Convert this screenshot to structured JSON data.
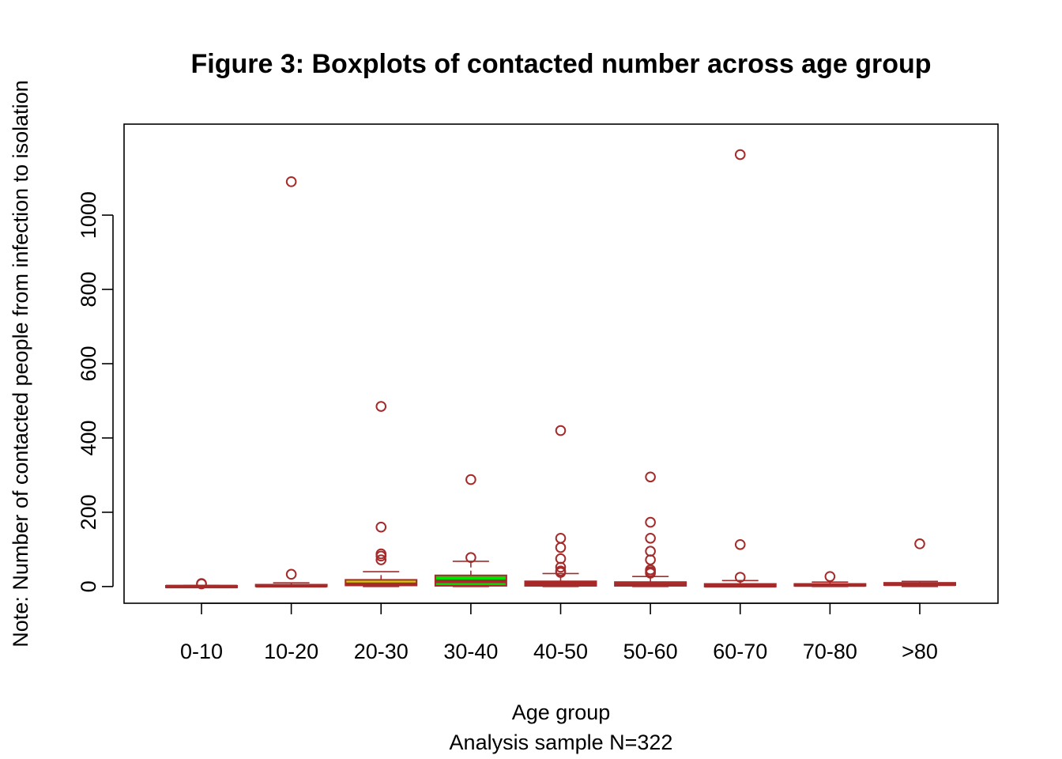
{
  "chart_data": {
    "type": "boxplot",
    "title": "Figure 3: Boxplots of contacted number across age group",
    "xlabel": "Age group",
    "xlabel_sub": "Analysis sample N=322",
    "ylabel": "Note: Number of contacted people from infection to isolation",
    "ylim": [
      -45,
      1245
    ],
    "yticks": [
      0,
      200,
      400,
      600,
      800,
      1000
    ],
    "ytick_labels": [
      "0",
      "200",
      "400",
      "600",
      "800",
      "1000"
    ],
    "grid": false,
    "legend": "none",
    "outline_color": "#a52a2a",
    "categories": [
      "0-10",
      "10-20",
      "20-30",
      "30-40",
      "40-50",
      "50-60",
      "60-70",
      "70-80",
      ">80"
    ],
    "boxes": [
      {
        "category": "0-10",
        "fill": "#8b0000",
        "whisker_low": 0,
        "q1": 0,
        "median": 0,
        "q3": 2,
        "whisker_high": 3,
        "outliers": [
          7,
          8
        ]
      },
      {
        "category": "10-20",
        "fill": "#b22222",
        "whisker_low": 0,
        "q1": 1,
        "median": 2,
        "q3": 5,
        "whisker_high": 10,
        "outliers": [
          1090,
          33
        ]
      },
      {
        "category": "20-30",
        "fill": "#cccc00",
        "whisker_low": 0,
        "q1": 3,
        "median": 6,
        "q3": 18,
        "whisker_high": 40,
        "outliers": [
          485,
          160,
          88,
          82,
          72
        ]
      },
      {
        "category": "30-40",
        "fill": "#00e000",
        "whisker_low": 0,
        "q1": 2,
        "median": 14,
        "q3": 30,
        "whisker_high": 68,
        "outliers": [
          288,
          78
        ]
      },
      {
        "category": "40-50",
        "fill": "#b22222",
        "whisker_low": 0,
        "q1": 2,
        "median": 5,
        "q3": 14,
        "whisker_high": 35,
        "outliers": [
          420,
          130,
          105,
          75,
          52,
          42,
          38
        ]
      },
      {
        "category": "50-60",
        "fill": "#4682b4",
        "whisker_low": 0,
        "q1": 2,
        "median": 5,
        "q3": 12,
        "whisker_high": 27,
        "outliers": [
          295,
          173,
          130,
          95,
          72,
          45,
          40,
          36
        ]
      },
      {
        "category": "60-70",
        "fill": "#b22222",
        "whisker_low": 0,
        "q1": 0,
        "median": 2,
        "q3": 7,
        "whisker_high": 16,
        "outliers": [
          1163,
          113,
          25
        ]
      },
      {
        "category": "70-80",
        "fill": "#b22222",
        "whisker_low": 0,
        "q1": 2,
        "median": 4,
        "q3": 7,
        "whisker_high": 12,
        "outliers": [
          27
        ]
      },
      {
        "category": ">80",
        "fill": "#b22222",
        "whisker_low": 0,
        "q1": 4,
        "median": 6,
        "q3": 10,
        "whisker_high": 14,
        "outliers": [
          115
        ]
      }
    ]
  }
}
